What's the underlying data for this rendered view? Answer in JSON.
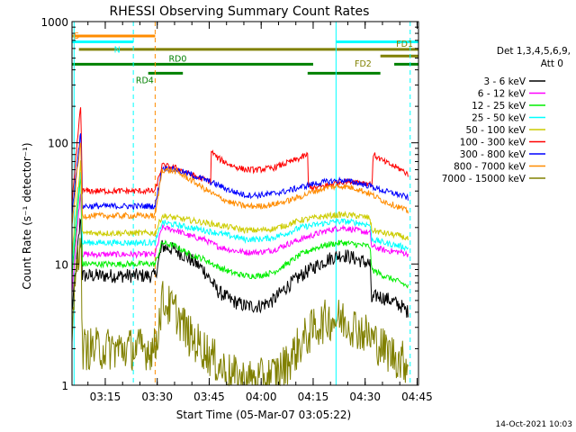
{
  "chart_data": {
    "type": "line",
    "title": "RHESSI Observing Summary Count Rates",
    "xlabel": "Start Time (05-Mar-07 03:05:22)",
    "ylabel": "Count Rate (s⁻¹ detector⁻¹)",
    "yscale": "log",
    "ylim": [
      1,
      1000
    ],
    "xlim_minutes": [
      0,
      100
    ],
    "x_ticks": [
      {
        "label": "03:15",
        "t": 9.6
      },
      {
        "label": "03:30",
        "t": 24.6
      },
      {
        "label": "03:45",
        "t": 39.6
      },
      {
        "label": "04:00",
        "t": 54.6
      },
      {
        "label": "04:15",
        "t": 69.6
      },
      {
        "label": "04:30",
        "t": 84.6
      },
      {
        "label": "04:45",
        "t": 99.6
      }
    ],
    "y_ticks": [
      {
        "label": "1000",
        "v": 1000
      },
      {
        "label": "100",
        "v": 100
      },
      {
        "label": "10",
        "v": 10
      },
      {
        "label": "1",
        "v": 1
      }
    ],
    "grid": false,
    "legend_position": "right",
    "legend_header": [
      "Det 1,3,4,5,6,9,",
      "Att 0"
    ],
    "series": [
      {
        "name": "3 - 6 keV",
        "color": "#000000",
        "points": [
          [
            0,
            4
          ],
          [
            1.5,
            12
          ],
          [
            2.5,
            25
          ],
          [
            3,
            8
          ],
          [
            24,
            8
          ],
          [
            26,
            14
          ],
          [
            30,
            13
          ],
          [
            34,
            11
          ],
          [
            38,
            9
          ],
          [
            42,
            6
          ],
          [
            46,
            5
          ],
          [
            50,
            4.5
          ],
          [
            54,
            4.5
          ],
          [
            58,
            5
          ],
          [
            62,
            6.5
          ],
          [
            66,
            8
          ],
          [
            70,
            9.5
          ],
          [
            74,
            11
          ],
          [
            78,
            12
          ],
          [
            82,
            11
          ],
          [
            86,
            10
          ],
          [
            86.5,
            5
          ],
          [
            88,
            5.5
          ],
          [
            92,
            5
          ],
          [
            95,
            4.5
          ],
          [
            97,
            4
          ]
        ]
      },
      {
        "name": "6 - 12 keV",
        "color": "#ff00ff",
        "points": [
          [
            0,
            6
          ],
          [
            1.5,
            20
          ],
          [
            2.5,
            40
          ],
          [
            3,
            12
          ],
          [
            24,
            12
          ],
          [
            26,
            20
          ],
          [
            30,
            19
          ],
          [
            34,
            17
          ],
          [
            38,
            16
          ],
          [
            42,
            14
          ],
          [
            46,
            13
          ],
          [
            50,
            12.5
          ],
          [
            54,
            12.5
          ],
          [
            58,
            13
          ],
          [
            62,
            14.5
          ],
          [
            66,
            16
          ],
          [
            70,
            17.5
          ],
          [
            74,
            19
          ],
          [
            78,
            20
          ],
          [
            82,
            19
          ],
          [
            86,
            18
          ],
          [
            86.5,
            14
          ],
          [
            90,
            13
          ],
          [
            95,
            12.5
          ],
          [
            97,
            12
          ]
        ]
      },
      {
        "name": "12 - 25 keV",
        "color": "#00ee00",
        "points": [
          [
            0,
            8
          ],
          [
            1.5,
            25
          ],
          [
            2.5,
            55
          ],
          [
            3,
            10
          ],
          [
            24,
            10
          ],
          [
            26,
            15
          ],
          [
            30,
            14
          ],
          [
            34,
            12
          ],
          [
            38,
            11
          ],
          [
            42,
            9.5
          ],
          [
            46,
            8.5
          ],
          [
            50,
            8
          ],
          [
            54,
            8
          ],
          [
            58,
            8.5
          ],
          [
            62,
            10
          ],
          [
            66,
            12
          ],
          [
            70,
            13.5
          ],
          [
            74,
            14.5
          ],
          [
            78,
            15
          ],
          [
            82,
            14.5
          ],
          [
            86,
            14
          ],
          [
            86.5,
            9
          ],
          [
            90,
            8
          ],
          [
            95,
            7
          ],
          [
            97,
            6.5
          ]
        ]
      },
      {
        "name": "25 - 50 keV",
        "color": "#00ffff",
        "points": [
          [
            0,
            10
          ],
          [
            1.5,
            30
          ],
          [
            2.5,
            60
          ],
          [
            3,
            15
          ],
          [
            24,
            15
          ],
          [
            26,
            22
          ],
          [
            30,
            21
          ],
          [
            34,
            20
          ],
          [
            38,
            19
          ],
          [
            42,
            18
          ],
          [
            46,
            17
          ],
          [
            50,
            16
          ],
          [
            54,
            16
          ],
          [
            58,
            16.5
          ],
          [
            62,
            18
          ],
          [
            66,
            20
          ],
          [
            70,
            21
          ],
          [
            74,
            22
          ],
          [
            78,
            22.5
          ],
          [
            82,
            22
          ],
          [
            86,
            21
          ],
          [
            86.5,
            16
          ],
          [
            90,
            15
          ],
          [
            95,
            14
          ],
          [
            97,
            13.5
          ]
        ]
      },
      {
        "name": "50 - 100 keV",
        "color": "#cccc00",
        "points": [
          [
            0,
            12
          ],
          [
            1.5,
            35
          ],
          [
            2.5,
            70
          ],
          [
            3,
            18
          ],
          [
            24,
            18
          ],
          [
            26,
            25
          ],
          [
            30,
            24
          ],
          [
            34,
            23
          ],
          [
            38,
            22
          ],
          [
            42,
            21
          ],
          [
            46,
            20
          ],
          [
            50,
            19
          ],
          [
            54,
            19
          ],
          [
            58,
            19.5
          ],
          [
            62,
            21
          ],
          [
            66,
            23
          ],
          [
            70,
            24
          ],
          [
            74,
            25
          ],
          [
            78,
            25.5
          ],
          [
            82,
            25
          ],
          [
            86,
            24
          ],
          [
            86.5,
            19
          ],
          [
            90,
            18
          ],
          [
            95,
            17
          ],
          [
            97,
            16
          ]
        ]
      },
      {
        "name": "100 - 300 keV",
        "color": "#ff0000",
        "points": [
          [
            0,
            30
          ],
          [
            1.5,
            100
          ],
          [
            2.5,
            200
          ],
          [
            3,
            40
          ],
          [
            24,
            40
          ],
          [
            26,
            65
          ],
          [
            30,
            62
          ],
          [
            34,
            55
          ],
          [
            38,
            50
          ],
          [
            40,
            48
          ],
          [
            40.2,
            85
          ],
          [
            42,
            75
          ],
          [
            46,
            65
          ],
          [
            50,
            60
          ],
          [
            54,
            60
          ],
          [
            58,
            62
          ],
          [
            62,
            68
          ],
          [
            66,
            75
          ],
          [
            68,
            80
          ],
          [
            68.2,
            45
          ],
          [
            70,
            42
          ],
          [
            74,
            45
          ],
          [
            78,
            48
          ],
          [
            82,
            48
          ],
          [
            86,
            46
          ],
          [
            86.5,
            44
          ],
          [
            87,
            80
          ],
          [
            90,
            70
          ],
          [
            95,
            60
          ],
          [
            97,
            55
          ]
        ]
      },
      {
        "name": "300 - 800 keV",
        "color": "#0000ff",
        "points": [
          [
            0,
            25
          ],
          [
            1.5,
            70
          ],
          [
            2.5,
            120
          ],
          [
            3,
            30
          ],
          [
            24,
            30
          ],
          [
            26,
            62
          ],
          [
            30,
            60
          ],
          [
            34,
            55
          ],
          [
            38,
            50
          ],
          [
            42,
            45
          ],
          [
            46,
            40
          ],
          [
            50,
            37
          ],
          [
            54,
            37
          ],
          [
            58,
            38
          ],
          [
            62,
            40
          ],
          [
            66,
            43
          ],
          [
            70,
            46
          ],
          [
            74,
            48
          ],
          [
            78,
            49
          ],
          [
            82,
            47
          ],
          [
            86,
            44
          ],
          [
            90,
            40
          ],
          [
            95,
            37
          ],
          [
            97,
            35
          ]
        ]
      },
      {
        "name": "800 - 7000 keV",
        "color": "#ff8c00",
        "points": [
          [
            0,
            20
          ],
          [
            1.5,
            60
          ],
          [
            2.5,
            100
          ],
          [
            3,
            25
          ],
          [
            24,
            25
          ],
          [
            26,
            60
          ],
          [
            30,
            58
          ],
          [
            34,
            50
          ],
          [
            38,
            42
          ],
          [
            42,
            36
          ],
          [
            46,
            32
          ],
          [
            50,
            30
          ],
          [
            54,
            30
          ],
          [
            58,
            31
          ],
          [
            62,
            33
          ],
          [
            66,
            36
          ],
          [
            70,
            40
          ],
          [
            74,
            43
          ],
          [
            78,
            44
          ],
          [
            82,
            42
          ],
          [
            86,
            38
          ],
          [
            90,
            33
          ],
          [
            95,
            29
          ],
          [
            97,
            27
          ]
        ]
      },
      {
        "name": "7000 - 15000 keV",
        "color": "#808000",
        "points": [
          [
            0,
            3
          ],
          [
            1.5,
            10
          ],
          [
            2.5,
            20
          ],
          [
            3,
            2
          ],
          [
            24,
            2
          ],
          [
            26,
            5
          ],
          [
            30,
            4
          ],
          [
            34,
            2.5
          ],
          [
            38,
            2
          ],
          [
            42,
            1.5
          ],
          [
            46,
            1.2
          ],
          [
            50,
            1.1
          ],
          [
            54,
            1.1
          ],
          [
            58,
            1.2
          ],
          [
            62,
            1.5
          ],
          [
            66,
            2.2
          ],
          [
            70,
            3
          ],
          [
            74,
            3.5
          ],
          [
            78,
            3.5
          ],
          [
            82,
            3
          ],
          [
            86,
            2.5
          ],
          [
            90,
            2
          ],
          [
            95,
            1.6
          ],
          [
            97,
            1.5
          ]
        ]
      }
    ],
    "state_bars": [
      {
        "label": "S",
        "color": "#ff8c00",
        "level": 760,
        "segments": [
          [
            0,
            24
          ]
        ]
      },
      {
        "label": "N",
        "color": "#00ffff",
        "level": 680,
        "segments": [
          [
            0,
            17.7
          ],
          [
            76.2,
            100
          ]
        ]
      },
      {
        "label": "FD1",
        "color": "#808000",
        "level": 590,
        "segments": [
          [
            2,
            100
          ]
        ]
      },
      {
        "label": "FD2",
        "color": "#808000",
        "level": 520,
        "segments": [
          [
            89,
            100
          ]
        ]
      },
      {
        "label": "RD0",
        "color": "#008000",
        "level": 445,
        "segments": [
          [
            0,
            69.6
          ],
          [
            93,
            100
          ]
        ]
      },
      {
        "label": "RD4",
        "color": "#008000",
        "level": 375,
        "segments": [
          [
            22,
            32
          ],
          [
            68,
            89
          ]
        ]
      }
    ],
    "vertical_lines": [
      {
        "color": "#00ffff",
        "t": 0.6,
        "dashed": false
      },
      {
        "color": "#00ffff",
        "t": 17.7,
        "dashed": true
      },
      {
        "color": "#ff8c00",
        "t": 24.0,
        "dashed": true
      },
      {
        "color": "#00ffff",
        "t": 76.2,
        "dashed": false
      },
      {
        "color": "#00ffff",
        "t": 97.6,
        "dashed": true
      }
    ],
    "timestamp": "14-Oct-2021 10:03"
  }
}
